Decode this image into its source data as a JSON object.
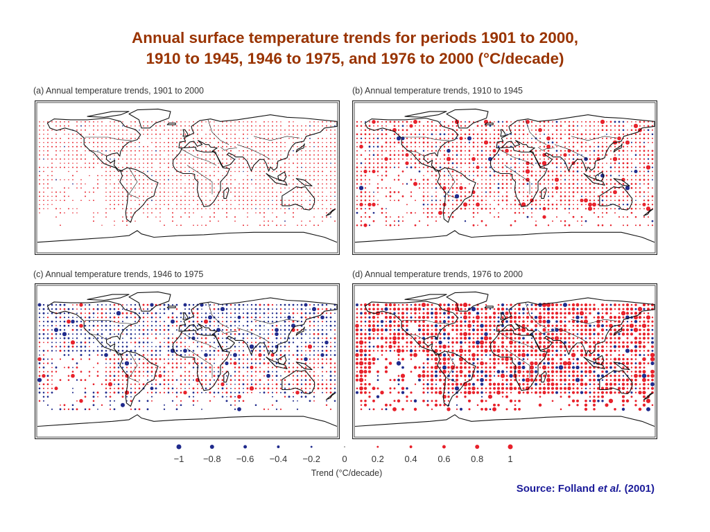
{
  "title": {
    "line1": "Annual surface temperature trends for periods 1901 to 2000,",
    "line2": "1910 to 1945, 1946 to 1975, and 1976 to 2000 (°C/decade)"
  },
  "colors": {
    "title": "#993300",
    "warming": "#e8202a",
    "cooling": "#1f2a8c",
    "source": "#1a1a99"
  },
  "chart_data": [
    {
      "type": "scatter",
      "title": "(a) Annual temperature trends, 1901 to 2000",
      "encoding": "dot size and color on world map grid",
      "dominant_sign": "warming",
      "warm_fraction": 0.97,
      "typical_trend": 0.1,
      "strong_fraction": 0.0
    },
    {
      "type": "scatter",
      "title": "(b) Annual temperature trends, 1910 to 1945",
      "encoding": "dot size and color on world map grid",
      "dominant_sign": "warming",
      "warm_fraction": 0.9,
      "typical_trend": 0.2,
      "strong_fraction": 0.05
    },
    {
      "type": "scatter",
      "title": "(c) Annual temperature trends, 1946 to 1975",
      "encoding": "dot size and color on world map grid",
      "dominant_sign": "mixed (cooling in Northern Hemisphere)",
      "warm_fraction": 0.45,
      "typical_trend": 0.2,
      "strong_fraction": 0.04
    },
    {
      "type": "scatter",
      "title": "(d) Annual temperature trends, 1976 to 2000",
      "encoding": "dot size and color on world map grid",
      "dominant_sign": "warming",
      "warm_fraction": 0.85,
      "typical_trend": 0.4,
      "strong_fraction": 0.12
    }
  ],
  "legend": {
    "title": "Trend (°C/decade)",
    "values": [
      -1,
      -0.8,
      -0.6,
      -0.4,
      -0.2,
      0,
      0.2,
      0.4,
      0.6,
      0.8,
      1
    ],
    "labels": [
      "−1",
      "−0.8",
      "−0.6",
      "−0.4",
      "−0.2",
      "0",
      "0.2",
      "0.4",
      "0.6",
      "0.8",
      "1"
    ]
  },
  "source": {
    "prefix": "Source: Folland ",
    "italic": "et al.",
    "suffix": " (2001)"
  }
}
